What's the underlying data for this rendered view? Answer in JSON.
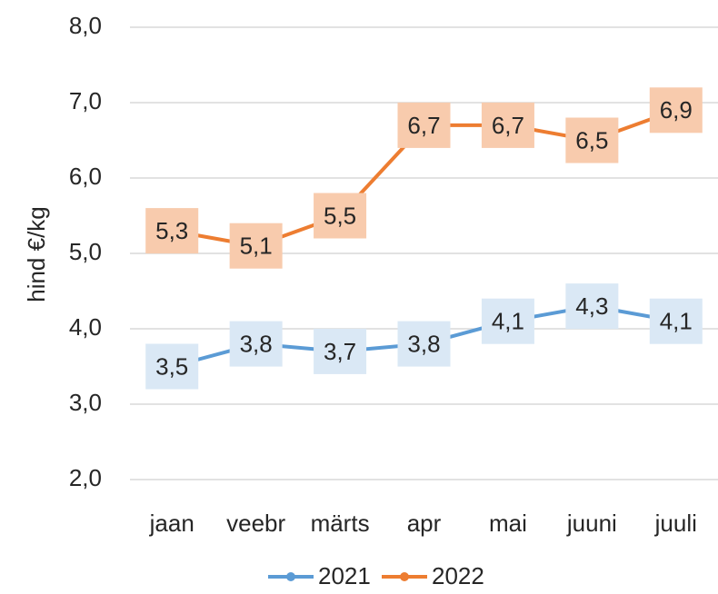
{
  "chart_data": {
    "type": "line",
    "y_label": "hind €/kg",
    "categories": [
      "jaan",
      "veebr",
      "märts",
      "apr",
      "mai",
      "juuni",
      "juuli"
    ],
    "series": [
      {
        "name": "2021",
        "color": "#5b9bd5",
        "label_bg": "#dae8f5",
        "values": [
          3.5,
          3.8,
          3.7,
          3.8,
          4.1,
          4.3,
          4.1
        ],
        "value_labels": [
          "3,5",
          "3,8",
          "3,7",
          "3,8",
          "4,1",
          "4,3",
          "4,1"
        ]
      },
      {
        "name": "2022",
        "color": "#ed7d31",
        "label_bg": "#f8cbad",
        "values": [
          5.3,
          5.1,
          5.5,
          6.7,
          6.7,
          6.5,
          6.9
        ],
        "value_labels": [
          "5,3",
          "5,1",
          "5,5",
          "6,7",
          "6,7",
          "6,5",
          "6,9"
        ]
      }
    ],
    "ylim": [
      2,
      8
    ],
    "yticks": [
      {
        "value": 2,
        "label": "2,0"
      },
      {
        "value": 3,
        "label": "3,0"
      },
      {
        "value": 4,
        "label": "4,0"
      },
      {
        "value": 5,
        "label": "5,0"
      },
      {
        "value": 6,
        "label": "6,0"
      },
      {
        "value": 7,
        "label": "7,0"
      },
      {
        "value": 8,
        "label": "8,0"
      }
    ],
    "grid": true,
    "legend": "bottom"
  }
}
